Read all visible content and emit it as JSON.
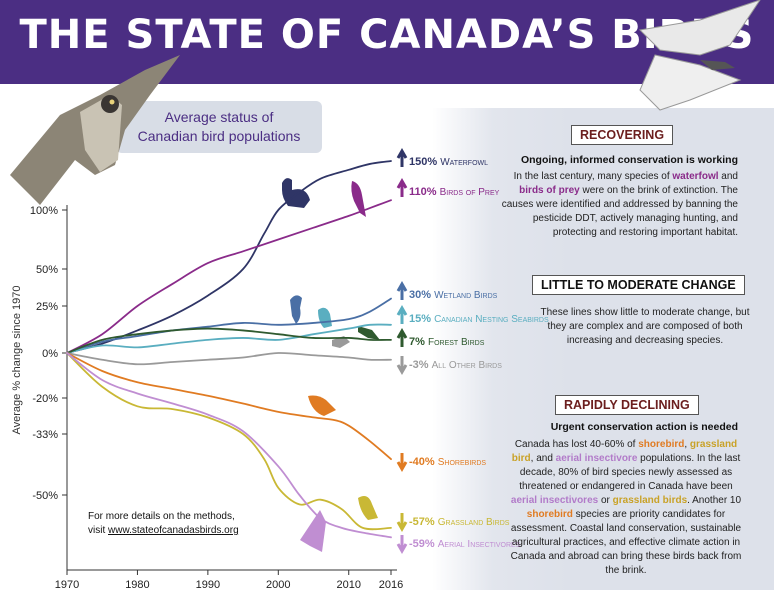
{
  "title": "THE STATE OF CANADA’S BIRDS",
  "avg_box": {
    "line1": "Average status of",
    "line2": "Canadian bird populations"
  },
  "details": {
    "line1": "For more details on the methods,",
    "prefix": "visit ",
    "url": "www.stateofcanadasbirds.org"
  },
  "sections": {
    "recovering": {
      "heading": "RECOVERING",
      "subheading": "Ongoing, informed conservation is working",
      "body": [
        {
          "t": "In the last century, many species of "
        },
        {
          "t": "waterfowl",
          "c": "hl-purple"
        },
        {
          "t": " and "
        },
        {
          "t": "birds of prey",
          "c": "hl-purple"
        },
        {
          "t": " were on the brink of extinction. The causes were identified and addressed by banning the pesticide DDT, actively managing hunting, and protecting and restoring important habitat."
        }
      ]
    },
    "little": {
      "heading": "LITTLE TO MODERATE CHANGE",
      "body": [
        {
          "t": "These lines show little to moderate change, but they are complex and are composed of both increasing and decreasing species."
        }
      ]
    },
    "declining": {
      "heading": "RAPIDLY DECLINING",
      "subheading": "Urgent conservation action is needed",
      "body": [
        {
          "t": "Canada has lost 40-60% of "
        },
        {
          "t": "shorebird",
          "c": "hl-orange"
        },
        {
          "t": ", "
        },
        {
          "t": "grassland bird",
          "c": "hl-gold"
        },
        {
          "t": ", and "
        },
        {
          "t": "aerial insectivore",
          "c": "hl-lilac"
        },
        {
          "t": " populations. In the last decade, 80% of bird species newly assessed as threatened or endangered in Canada have been "
        },
        {
          "t": "aerial insectivores",
          "c": "hl-lilac"
        },
        {
          "t": " or "
        },
        {
          "t": "grassland birds",
          "c": "hl-gold"
        },
        {
          "t": ". Another 10 "
        },
        {
          "t": "shorebird",
          "c": "hl-orange"
        },
        {
          "t": " species are priority candidates for assessment. Coastal land conservation, sustainable agricultural practices, and effective climate action in Canada and abroad can bring these birds back from the brink."
        }
      ]
    }
  },
  "colors": {
    "banner": "#4b2e83",
    "axis": "#333333"
  },
  "chart_data": {
    "type": "line",
    "ylabel": "Average % change since 1970",
    "xlabel": "",
    "x_ticks": [
      1970,
      1980,
      1990,
      2000,
      2010,
      2016
    ],
    "y_ticks": [
      100,
      50,
      25,
      0,
      -20,
      -33,
      -50
    ],
    "y_tick_labels": [
      "100%",
      "50%",
      "25%",
      "0%",
      "-20%",
      "-33%",
      "-50%"
    ],
    "xlim": [
      1970,
      2016
    ],
    "grid": false,
    "series": [
      {
        "name": "Waterfowl",
        "label_value": "150%",
        "arrow": "up",
        "color": "#2f3566",
        "x": [
          1970,
          1975,
          1980,
          1985,
          1990,
          1995,
          1998,
          2000,
          2003,
          2006,
          2010,
          2013,
          2016
        ],
        "y": [
          0,
          5,
          12,
          20,
          32,
          50,
          80,
          100,
          118,
          132,
          141,
          147,
          150
        ]
      },
      {
        "name": "Birds of Prey",
        "label_value": "110%",
        "arrow": "up",
        "color": "#8a2b8a",
        "x": [
          1970,
          1975,
          1980,
          1985,
          1990,
          1995,
          2000,
          2005,
          2010,
          2013,
          2016
        ],
        "y": [
          0,
          10,
          25,
          40,
          55,
          65,
          75,
          85,
          95,
          102,
          110
        ]
      },
      {
        "name": "Wetland Birds",
        "label_value": "30%",
        "arrow": "up",
        "color": "#4a6fa5",
        "x": [
          1970,
          1975,
          1980,
          1985,
          1990,
          1995,
          2000,
          2005,
          2010,
          2013,
          2016
        ],
        "y": [
          0,
          6,
          9,
          12,
          14,
          16,
          15,
          16,
          18,
          22,
          30
        ]
      },
      {
        "name": "Canadian Nesting Seabirds",
        "label_value": "15%",
        "arrow": "up",
        "color": "#5aaec0",
        "x": [
          1970,
          1975,
          1980,
          1985,
          1990,
          1995,
          2000,
          2005,
          2010,
          2013,
          2016
        ],
        "y": [
          0,
          4,
          3,
          5,
          7,
          8,
          7,
          10,
          13,
          15,
          15
        ]
      },
      {
        "name": "Forest Birds",
        "label_value": "7%",
        "arrow": "up",
        "color": "#2f5a2f",
        "x": [
          1970,
          1975,
          1980,
          1985,
          1990,
          1995,
          2000,
          2005,
          2010,
          2013,
          2016
        ],
        "y": [
          0,
          7,
          10,
          12,
          13,
          12,
          10,
          8,
          8,
          7,
          7
        ]
      },
      {
        "name": "All Other Birds",
        "label_value": "-3%",
        "arrow": "down",
        "color": "#9a9a9a",
        "x": [
          1970,
          1975,
          1980,
          1985,
          1990,
          1995,
          2000,
          2005,
          2010,
          2013,
          2016
        ],
        "y": [
          0,
          -3,
          -5,
          -4,
          -3,
          -2,
          0,
          -1,
          -2,
          -3,
          -3
        ]
      },
      {
        "name": "Shorebirds",
        "label_value": "-40%",
        "arrow": "down",
        "color": "#e07b22",
        "x": [
          1970,
          1975,
          1980,
          1985,
          1990,
          1995,
          2000,
          2005,
          2008,
          2010,
          2013,
          2016
        ],
        "y": [
          0,
          -8,
          -13,
          -16,
          -19,
          -22,
          -25,
          -27,
          -28,
          -30,
          -35,
          -40
        ]
      },
      {
        "name": "Grassland Birds",
        "label_value": "-57%",
        "arrow": "down",
        "color": "#c9b835",
        "x": [
          1970,
          1975,
          1980,
          1985,
          1990,
          1995,
          1998,
          2000,
          2003,
          2006,
          2009,
          2012,
          2016
        ],
        "y": [
          0,
          -15,
          -23,
          -24,
          -27,
          -33,
          -40,
          -48,
          -52,
          -51,
          -53,
          -57,
          -57
        ]
      },
      {
        "name": "Aerial Insectivores",
        "label_value": "-59%",
        "arrow": "down",
        "color": "#c08ed2",
        "x": [
          1970,
          1975,
          1980,
          1985,
          1990,
          1995,
          2000,
          2003,
          2006,
          2009,
          2012,
          2016
        ],
        "y": [
          0,
          -12,
          -18,
          -22,
          -26,
          -32,
          -42,
          -50,
          -55,
          -57,
          -58,
          -59
        ]
      }
    ]
  }
}
